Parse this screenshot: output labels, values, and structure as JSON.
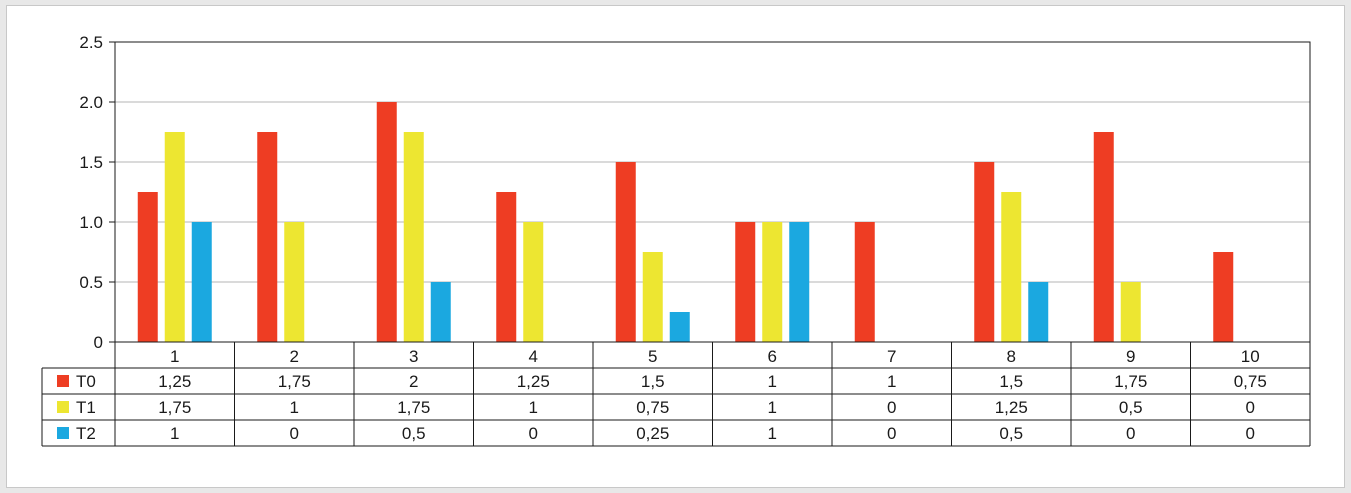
{
  "chart_data": {
    "type": "bar",
    "title": "",
    "xlabel": "",
    "ylabel": "",
    "ylim": [
      0,
      2.5
    ],
    "yticks": [
      {
        "value": 0,
        "label": "0"
      },
      {
        "value": 0.5,
        "label": "0.5"
      },
      {
        "value": 1.0,
        "label": "1.0"
      },
      {
        "value": 1.5,
        "label": "1.5"
      },
      {
        "value": 2.0,
        "label": "2.0"
      },
      {
        "value": 2.5,
        "label": "2.5"
      }
    ],
    "grid": true,
    "legend": "data-table",
    "categories": [
      "1",
      "2",
      "3",
      "4",
      "5",
      "6",
      "7",
      "8",
      "9",
      "10"
    ],
    "series": [
      {
        "name": "T0",
        "color": "#ee3d23",
        "values": [
          1.25,
          1.75,
          2,
          1.25,
          1.5,
          1,
          1,
          1.5,
          1.75,
          0.75
        ],
        "labels": [
          "1,25",
          "1,75",
          "2",
          "1,25",
          "1,5",
          "1",
          "1",
          "1,5",
          "1,75",
          "0,75"
        ]
      },
      {
        "name": "T1",
        "color": "#ede631",
        "values": [
          1.75,
          1,
          1.75,
          1,
          0.75,
          1,
          0,
          1.25,
          0.5,
          0
        ],
        "labels": [
          "1,75",
          "1",
          "1,75",
          "1",
          "0,75",
          "1",
          "0",
          "1,25",
          "0,5",
          "0"
        ]
      },
      {
        "name": "T2",
        "color": "#1ba8e0",
        "values": [
          1,
          0,
          0.5,
          0,
          0.25,
          1,
          0,
          0.5,
          0,
          0
        ],
        "labels": [
          "1",
          "0",
          "0,5",
          "0",
          "0,25",
          "1",
          "0",
          "0,5",
          "0",
          "0"
        ]
      }
    ]
  }
}
